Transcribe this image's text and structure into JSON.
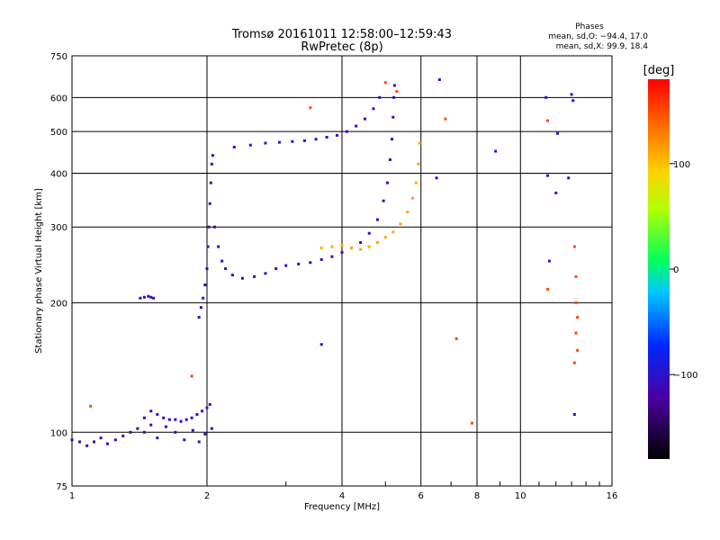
{
  "chart_data": {
    "type": "scatter",
    "title": "Tromsø 20161011 12:58:00–12:59:43",
    "subtitle": "RwPretec (8p)",
    "phases_title": "Phases",
    "phases_o": "mean, sd,O: −94.4, 17.0",
    "phases_x": "mean, sd,X:  99.9, 18.4",
    "xlabel": "Frequency [MHz]",
    "ylabel": "Stationary phase Virtual Height [km]",
    "x_scale": "log",
    "y_scale": "log",
    "xlim": [
      1,
      16
    ],
    "ylim": [
      75,
      750
    ],
    "x_ticks": [
      1,
      2,
      4,
      6,
      8,
      10,
      16
    ],
    "y_ticks": [
      75,
      100,
      200,
      300,
      400,
      500,
      600,
      750
    ],
    "grid": true,
    "colorbar": {
      "label": "[deg]",
      "range": [
        -180,
        180
      ],
      "ticks": [
        100,
        0,
        -100
      ]
    },
    "series": [
      {
        "trace": "low-E-layer",
        "phase": -110,
        "points": [
          [
            1.0,
            96
          ],
          [
            1.04,
            95
          ],
          [
            1.08,
            93
          ],
          [
            1.12,
            95
          ],
          [
            1.16,
            97
          ],
          [
            1.2,
            94
          ],
          [
            1.25,
            96
          ],
          [
            1.3,
            98
          ],
          [
            1.35,
            100
          ],
          [
            1.4,
            102
          ],
          [
            1.45,
            100
          ],
          [
            1.5,
            104
          ],
          [
            1.55,
            97
          ],
          [
            1.62,
            103
          ],
          [
            1.7,
            100
          ],
          [
            1.78,
            96
          ],
          [
            1.86,
            101
          ],
          [
            1.92,
            95
          ],
          [
            1.98,
            99
          ],
          [
            2.05,
            102
          ]
        ]
      },
      {
        "trace": "E-layer-upper",
        "phase": -100,
        "points": [
          [
            1.45,
            108
          ],
          [
            1.5,
            112
          ],
          [
            1.55,
            110
          ],
          [
            1.6,
            108
          ],
          [
            1.65,
            107
          ],
          [
            1.7,
            107
          ],
          [
            1.75,
            106
          ],
          [
            1.8,
            107
          ],
          [
            1.85,
            108
          ],
          [
            1.9,
            110
          ],
          [
            1.95,
            112
          ],
          [
            2.0,
            114
          ],
          [
            2.03,
            116
          ]
        ]
      },
      {
        "trace": "E-blob-200",
        "phase": -100,
        "points": [
          [
            1.42,
            205
          ],
          [
            1.45,
            206
          ],
          [
            1.48,
            207
          ],
          [
            1.5,
            206
          ],
          [
            1.52,
            205
          ]
        ]
      },
      {
        "trace": "F1-cusp",
        "phase": -110,
        "points": [
          [
            1.92,
            185
          ],
          [
            1.94,
            195
          ],
          [
            1.96,
            205
          ],
          [
            1.98,
            220
          ],
          [
            2.0,
            240
          ],
          [
            2.01,
            270
          ],
          [
            2.02,
            300
          ],
          [
            2.03,
            340
          ],
          [
            2.04,
            380
          ],
          [
            2.05,
            420
          ],
          [
            2.06,
            440
          ],
          [
            2.08,
            300
          ],
          [
            2.12,
            270
          ],
          [
            2.16,
            250
          ],
          [
            2.2,
            240
          ],
          [
            2.28,
            232
          ],
          [
            2.4,
            228
          ],
          [
            2.55,
            230
          ],
          [
            2.7,
            234
          ],
          [
            2.85,
            240
          ],
          [
            3.0,
            244
          ],
          [
            3.2,
            246
          ],
          [
            3.4,
            248
          ],
          [
            3.6,
            252
          ],
          [
            3.8,
            256
          ],
          [
            4.0,
            262
          ],
          [
            4.2,
            268
          ],
          [
            4.4,
            276
          ],
          [
            4.6,
            290
          ],
          [
            4.8,
            312
          ],
          [
            4.95,
            345
          ],
          [
            5.05,
            380
          ],
          [
            5.12,
            430
          ],
          [
            5.17,
            480
          ],
          [
            5.2,
            540
          ],
          [
            5.22,
            600
          ],
          [
            5.24,
            640
          ]
        ]
      },
      {
        "trace": "F-O-upper",
        "phase": -100,
        "points": [
          [
            2.3,
            460
          ],
          [
            2.5,
            465
          ],
          [
            2.7,
            470
          ],
          [
            2.9,
            472
          ],
          [
            3.1,
            474
          ],
          [
            3.3,
            476
          ],
          [
            3.5,
            480
          ],
          [
            3.7,
            485
          ],
          [
            3.9,
            490
          ],
          [
            4.1,
            500
          ],
          [
            4.3,
            515
          ],
          [
            4.5,
            535
          ],
          [
            4.7,
            565
          ],
          [
            4.85,
            600
          ]
        ]
      },
      {
        "trace": "F-X",
        "phase": 110,
        "points": [
          [
            3.6,
            268
          ],
          [
            3.8,
            270
          ],
          [
            4.0,
            272
          ],
          [
            4.2,
            268
          ],
          [
            4.4,
            266
          ],
          [
            4.6,
            270
          ],
          [
            4.8,
            276
          ],
          [
            5.0,
            284
          ],
          [
            5.2,
            292
          ],
          [
            5.4,
            305
          ],
          [
            5.6,
            325
          ],
          [
            5.75,
            350
          ],
          [
            5.85,
            380
          ],
          [
            5.92,
            420
          ],
          [
            5.96,
            470
          ]
        ]
      },
      {
        "trace": "scatter",
        "phase": 150,
        "points": [
          [
            1.1,
            115
          ],
          [
            1.85,
            135
          ],
          [
            3.4,
            568
          ],
          [
            5.0,
            650
          ],
          [
            5.3,
            620
          ],
          [
            6.8,
            535
          ],
          [
            7.2,
            165
          ],
          [
            7.8,
            105
          ],
          [
            11.5,
            530
          ],
          [
            11.5,
            215
          ],
          [
            13.2,
            270
          ],
          [
            13.3,
            230
          ],
          [
            13.3,
            200
          ],
          [
            13.4,
            185
          ],
          [
            13.3,
            170
          ],
          [
            13.4,
            155
          ],
          [
            13.2,
            145
          ]
        ]
      },
      {
        "trace": "scatter-cold",
        "phase": -90,
        "points": [
          [
            3.6,
            160
          ],
          [
            6.5,
            390
          ],
          [
            6.6,
            660
          ],
          [
            8.8,
            450
          ],
          [
            11.4,
            600
          ],
          [
            11.5,
            395
          ],
          [
            11.6,
            250
          ],
          [
            12.0,
            360
          ],
          [
            12.1,
            495
          ],
          [
            12.8,
            390
          ],
          [
            13.0,
            610
          ],
          [
            13.1,
            590
          ],
          [
            13.2,
            110
          ]
        ]
      }
    ]
  }
}
